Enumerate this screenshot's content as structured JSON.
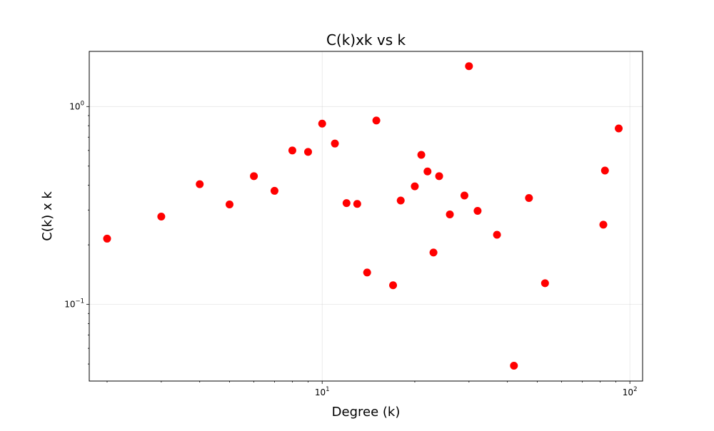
{
  "chart_data": {
    "type": "scatter",
    "title": "C(k)xk vs k",
    "xlabel": "Degree (k)",
    "ylabel": "C(k) x k",
    "xscale": "log",
    "yscale": "log",
    "xlim": [
      1.75,
      110
    ],
    "ylim": [
      0.041,
      1.9
    ],
    "grid": true,
    "legend": "none",
    "marker_color": "#ff0000",
    "x_ticks": [
      {
        "value": 10,
        "base": "10",
        "exp": "1"
      },
      {
        "value": 100,
        "base": "10",
        "exp": "2"
      }
    ],
    "y_ticks": [
      {
        "value": 0.1,
        "base": "10",
        "exp": "−1"
      },
      {
        "value": 1,
        "base": "10",
        "exp": "0"
      }
    ],
    "points": [
      {
        "x": 2,
        "y": 0.215
      },
      {
        "x": 3,
        "y": 0.278
      },
      {
        "x": 4,
        "y": 0.405
      },
      {
        "x": 5,
        "y": 0.32
      },
      {
        "x": 6,
        "y": 0.445
      },
      {
        "x": 7,
        "y": 0.375
      },
      {
        "x": 8,
        "y": 0.6
      },
      {
        "x": 9,
        "y": 0.59
      },
      {
        "x": 10,
        "y": 0.82
      },
      {
        "x": 11,
        "y": 0.65
      },
      {
        "x": 12,
        "y": 0.325
      },
      {
        "x": 13,
        "y": 0.322
      },
      {
        "x": 14,
        "y": 0.145
      },
      {
        "x": 15,
        "y": 0.85
      },
      {
        "x": 17,
        "y": 0.125
      },
      {
        "x": 18,
        "y": 0.335
      },
      {
        "x": 20,
        "y": 0.395
      },
      {
        "x": 21,
        "y": 0.57
      },
      {
        "x": 22,
        "y": 0.47
      },
      {
        "x": 23,
        "y": 0.183
      },
      {
        "x": 24,
        "y": 0.445
      },
      {
        "x": 26,
        "y": 0.285
      },
      {
        "x": 29,
        "y": 0.355
      },
      {
        "x": 30,
        "y": 1.6
      },
      {
        "x": 32,
        "y": 0.297
      },
      {
        "x": 37,
        "y": 0.225
      },
      {
        "x": 42,
        "y": 0.049
      },
      {
        "x": 47,
        "y": 0.345
      },
      {
        "x": 53,
        "y": 0.128
      },
      {
        "x": 82,
        "y": 0.253
      },
      {
        "x": 83,
        "y": 0.475
      },
      {
        "x": 92,
        "y": 0.775
      }
    ]
  }
}
